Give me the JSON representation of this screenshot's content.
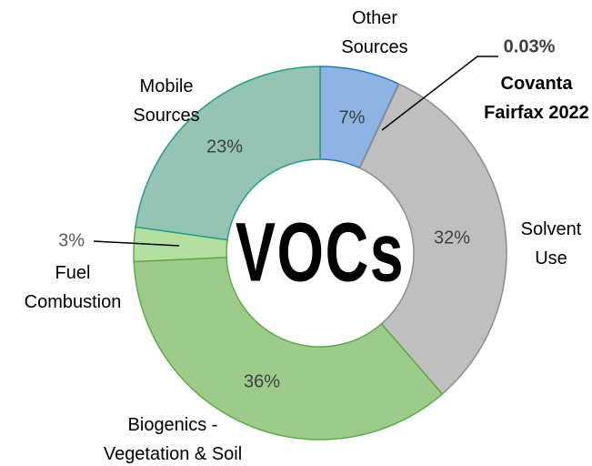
{
  "chart_data": {
    "type": "donut",
    "center_label": "VOCs",
    "categories": [
      "Other Sources",
      "Covanta Fairfax 2022",
      "Solvent Use",
      "Biogenics - Vegetation & Soil",
      "Fuel Combustion",
      "Mobile Sources"
    ],
    "values": [
      7,
      0.03,
      32,
      36,
      3,
      23
    ],
    "value_labels": [
      "7%",
      "0.03%",
      "32%",
      "36%",
      "3%",
      "23%"
    ],
    "colors": [
      "#8eb4e3",
      "#7f7f7f",
      "#bfbfbf",
      "#9dcc8a",
      "#b3e0a0",
      "#93c4b4"
    ]
  }
}
